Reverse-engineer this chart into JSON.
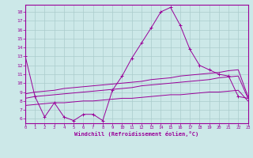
{
  "x": [
    0,
    1,
    2,
    3,
    4,
    5,
    6,
    7,
    8,
    9,
    10,
    11,
    12,
    13,
    14,
    15,
    16,
    17,
    18,
    19,
    20,
    21,
    22,
    23
  ],
  "main_line": [
    13,
    8.5,
    6.2,
    7.8,
    6.2,
    5.8,
    6.5,
    6.5,
    5.8,
    9.2,
    10.8,
    12.8,
    14.5,
    16.2,
    18.0,
    18.5,
    16.5,
    13.8,
    12.0,
    11.5,
    11.0,
    10.8,
    8.5,
    8.3
  ],
  "upper_line": [
    8.8,
    9.0,
    9.1,
    9.2,
    9.4,
    9.5,
    9.6,
    9.7,
    9.8,
    9.9,
    10.0,
    10.1,
    10.2,
    10.4,
    10.5,
    10.6,
    10.8,
    10.9,
    11.0,
    11.1,
    11.2,
    11.4,
    11.5,
    8.5
  ],
  "mid_line": [
    8.3,
    8.5,
    8.6,
    8.7,
    8.8,
    8.9,
    9.0,
    9.1,
    9.2,
    9.3,
    9.4,
    9.5,
    9.7,
    9.8,
    9.9,
    10.0,
    10.1,
    10.2,
    10.3,
    10.4,
    10.6,
    10.7,
    10.8,
    8.3
  ],
  "lower_line": [
    7.5,
    7.6,
    7.7,
    7.8,
    7.8,
    7.9,
    8.0,
    8.0,
    8.1,
    8.2,
    8.3,
    8.3,
    8.4,
    8.5,
    8.6,
    8.7,
    8.7,
    8.8,
    8.9,
    9.0,
    9.0,
    9.1,
    9.2,
    8.0
  ],
  "line_color": "#990099",
  "bg_color": "#cce8e8",
  "grid_color": "#aacccc",
  "xlabel": "Windchill (Refroidissement éolien,°C)",
  "xlim": [
    0,
    23
  ],
  "ylim": [
    5.5,
    18.8
  ],
  "yticks": [
    6,
    7,
    8,
    9,
    10,
    11,
    12,
    13,
    14,
    15,
    16,
    17,
    18
  ],
  "xticks": [
    0,
    1,
    2,
    3,
    4,
    5,
    6,
    7,
    8,
    9,
    10,
    11,
    12,
    13,
    14,
    15,
    16,
    17,
    18,
    19,
    20,
    21,
    22,
    23
  ]
}
